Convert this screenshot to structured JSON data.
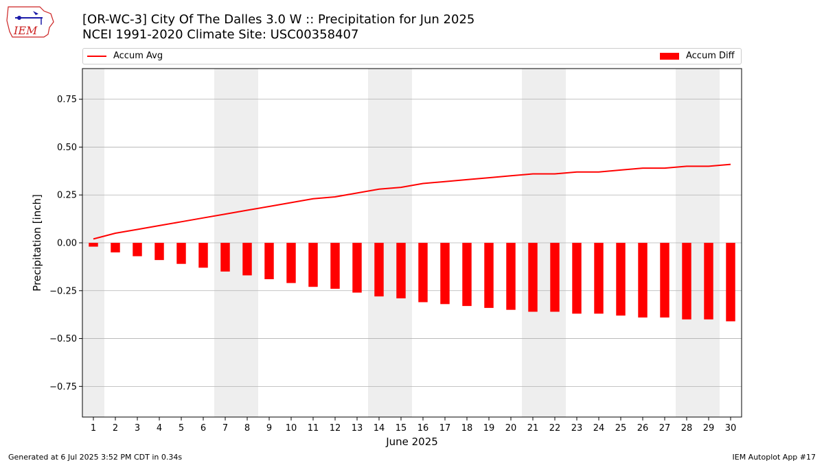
{
  "header": {
    "title_line1": "[OR-WC-3] City Of The Dalles 3.0 W :: Precipitation for Jun 2025",
    "title_line2": "NCEI 1991-2020 Climate Site: USC00358407",
    "logo_text": "IEM"
  },
  "legend": {
    "avg_label": "Accum Avg",
    "diff_label": "Accum Diff"
  },
  "footer": {
    "left": "Generated at 6 Jul 2025 3:52 PM CDT in 0.34s",
    "right": "IEM Autoplot App #17"
  },
  "colors": {
    "series": "#ff0000",
    "weekend_shade": "#eeeeee",
    "grid": "#b0b0b0"
  },
  "chart_data": {
    "type": "bar",
    "xlabel": "June 2025",
    "ylabel": "Precipitation [inch]",
    "ylim": [
      -0.91,
      0.91
    ],
    "yticks": [
      -0.75,
      -0.5,
      -0.25,
      0.0,
      0.25,
      0.5,
      0.75
    ],
    "ytick_labels": [
      "−0.75",
      "−0.50",
      "−0.25",
      "0.00",
      "0.25",
      "0.50",
      "0.75"
    ],
    "grid": "horizontal",
    "legend_placement": "top",
    "categories": [
      1,
      2,
      3,
      4,
      5,
      6,
      7,
      8,
      9,
      10,
      11,
      12,
      13,
      14,
      15,
      16,
      17,
      18,
      19,
      20,
      21,
      22,
      23,
      24,
      25,
      26,
      27,
      28,
      29,
      30
    ],
    "weekend_days": [
      1,
      7,
      8,
      14,
      15,
      21,
      22,
      28,
      29
    ],
    "series": [
      {
        "name": "Accum Avg",
        "type": "line",
        "values": [
          0.02,
          0.05,
          0.07,
          0.09,
          0.11,
          0.13,
          0.15,
          0.17,
          0.19,
          0.21,
          0.23,
          0.24,
          0.26,
          0.28,
          0.29,
          0.31,
          0.32,
          0.33,
          0.34,
          0.35,
          0.36,
          0.36,
          0.37,
          0.37,
          0.38,
          0.39,
          0.39,
          0.4,
          0.4,
          0.41
        ]
      },
      {
        "name": "Accum Diff",
        "type": "bar",
        "values": [
          -0.02,
          -0.05,
          -0.07,
          -0.09,
          -0.11,
          -0.13,
          -0.15,
          -0.17,
          -0.19,
          -0.21,
          -0.23,
          -0.24,
          -0.26,
          -0.28,
          -0.29,
          -0.31,
          -0.32,
          -0.33,
          -0.34,
          -0.35,
          -0.36,
          -0.36,
          -0.37,
          -0.37,
          -0.38,
          -0.39,
          -0.39,
          -0.4,
          -0.4,
          -0.41
        ]
      }
    ]
  }
}
